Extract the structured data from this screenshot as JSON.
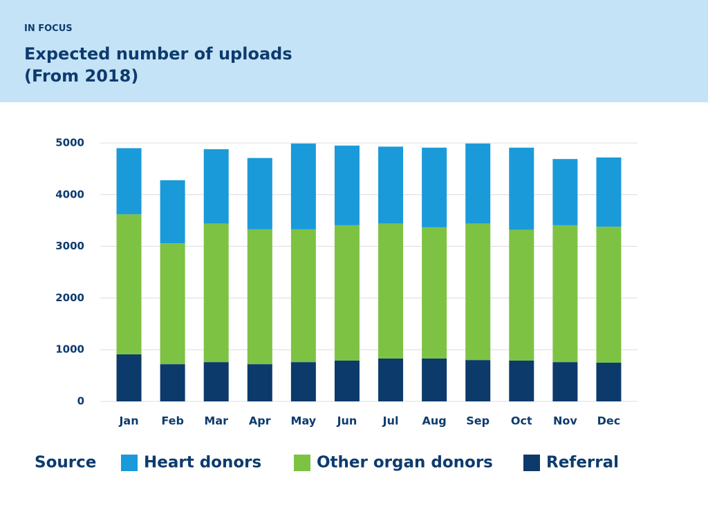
{
  "chart_data": {
    "type": "stacked_bar",
    "kicker": "IN FOCUS",
    "title": "Expected number of uploads (From 2018)",
    "categories": [
      "Jan",
      "Feb",
      "Mar",
      "Apr",
      "May",
      "Jun",
      "Jul",
      "Aug",
      "Sep",
      "Oct",
      "Nov",
      "Dec"
    ],
    "series": [
      {
        "name": "Heart donors",
        "color": "#1a9ad9",
        "values": [
          1280,
          1220,
          1440,
          1380,
          1660,
          1540,
          1490,
          1540,
          1550,
          1590,
          1280,
          1340
        ]
      },
      {
        "name": "Other organ donors",
        "color": "#7dc243",
        "values": [
          2710,
          2340,
          2680,
          2610,
          2570,
          2620,
          2610,
          2540,
          2640,
          2530,
          2650,
          2630
        ]
      },
      {
        "name": "Referral",
        "color": "#0b3a6b",
        "values": [
          910,
          720,
          760,
          720,
          760,
          790,
          830,
          830,
          800,
          790,
          760,
          750
        ]
      }
    ],
    "legend_title": "Source",
    "ylim": [
      0,
      5000
    ],
    "yticks": [
      0,
      1000,
      2000,
      3000,
      4000,
      5000
    ],
    "grid": true
  }
}
